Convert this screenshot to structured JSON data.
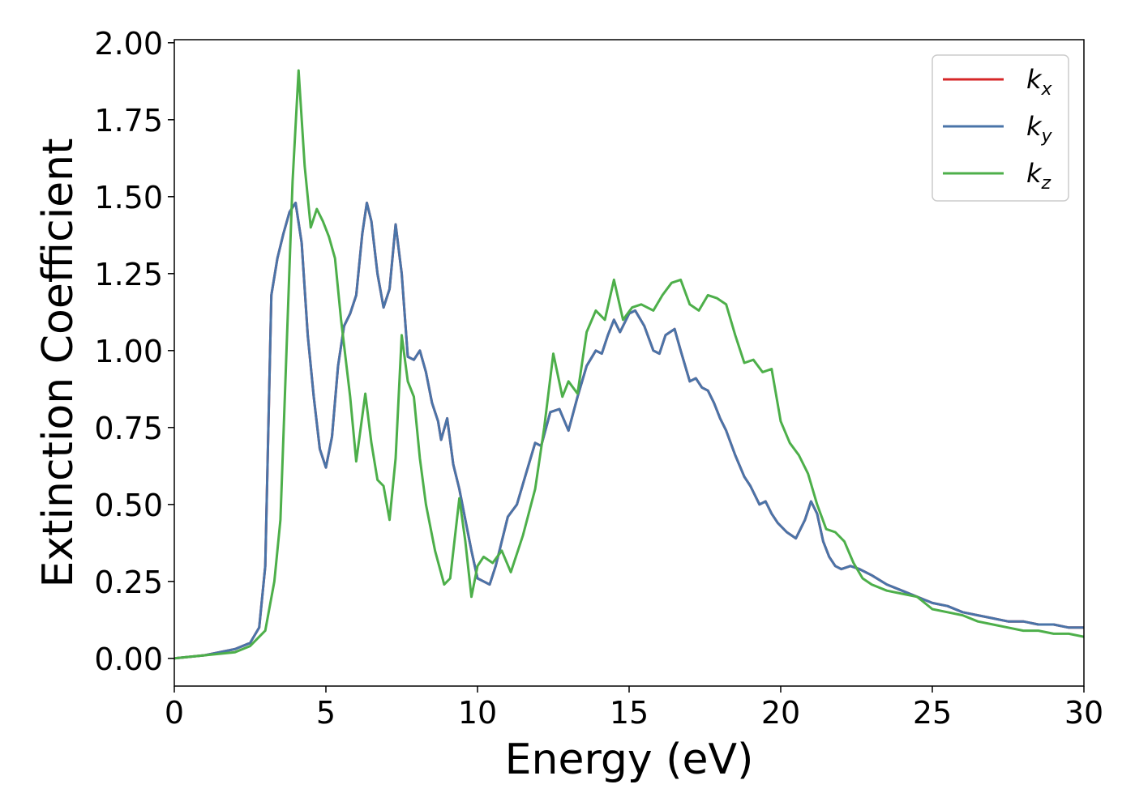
{
  "chart_data": {
    "type": "line",
    "title": "",
    "xlabel": "Energy (eV)",
    "ylabel": "Extinction Coefficient",
    "xlim": [
      0,
      30
    ],
    "ylim": [
      -0.09,
      2.01
    ],
    "xticks": [
      0,
      5,
      10,
      15,
      20,
      25,
      30
    ],
    "xtick_labels": [
      "0",
      "5",
      "10",
      "15",
      "20",
      "25",
      "30"
    ],
    "yticks": [
      0,
      0.25,
      0.5,
      0.75,
      1.0,
      1.25,
      1.5,
      1.75,
      2.0
    ],
    "ytick_labels": [
      "0.00",
      "0.25",
      "0.50",
      "0.75",
      "1.00",
      "1.25",
      "1.50",
      "1.75",
      "2.00"
    ],
    "grid": false,
    "legend_position": "top-right",
    "series": [
      {
        "name": "k_x",
        "label_main": "k",
        "label_sub": "x",
        "color": "#d62728",
        "x": [
          0,
          1,
          2,
          2.5,
          2.8,
          3.0,
          3.2,
          3.4,
          3.6,
          3.8,
          4.0,
          4.2,
          4.4,
          4.6,
          4.8,
          5.0,
          5.2,
          5.4,
          5.6,
          5.8,
          6.0,
          6.2,
          6.35,
          6.5,
          6.7,
          6.9,
          7.1,
          7.3,
          7.5,
          7.7,
          7.9,
          8.1,
          8.3,
          8.5,
          8.7,
          8.8,
          9.0,
          9.2,
          9.4,
          9.6,
          9.8,
          10.0,
          10.2,
          10.4,
          10.6,
          10.8,
          11.0,
          11.3,
          11.6,
          11.9,
          12.1,
          12.4,
          12.7,
          13.0,
          13.3,
          13.6,
          13.9,
          14.1,
          14.3,
          14.5,
          14.7,
          15.0,
          15.2,
          15.5,
          15.8,
          16.0,
          16.2,
          16.5,
          16.7,
          17.0,
          17.2,
          17.4,
          17.6,
          17.8,
          18.0,
          18.2,
          18.5,
          18.8,
          19.0,
          19.3,
          19.5,
          19.7,
          19.9,
          20.2,
          20.5,
          20.8,
          21.0,
          21.2,
          21.4,
          21.6,
          21.8,
          22.0,
          22.3,
          22.6,
          23.0,
          23.5,
          24.0,
          24.5,
          25,
          25.5,
          26,
          26.5,
          27,
          27.5,
          28,
          28.5,
          29,
          29.5,
          30
        ],
        "y": [
          0.0,
          0.01,
          0.03,
          0.05,
          0.1,
          0.3,
          1.18,
          1.3,
          1.38,
          1.45,
          1.48,
          1.35,
          1.05,
          0.85,
          0.68,
          0.62,
          0.72,
          0.95,
          1.08,
          1.12,
          1.18,
          1.38,
          1.48,
          1.42,
          1.25,
          1.14,
          1.2,
          1.41,
          1.25,
          0.98,
          0.97,
          1.0,
          0.93,
          0.83,
          0.77,
          0.71,
          0.78,
          0.63,
          0.55,
          0.45,
          0.35,
          0.26,
          0.25,
          0.24,
          0.3,
          0.38,
          0.46,
          0.5,
          0.6,
          0.7,
          0.69,
          0.8,
          0.81,
          0.74,
          0.85,
          0.95,
          1.0,
          0.99,
          1.05,
          1.1,
          1.06,
          1.12,
          1.13,
          1.08,
          1.0,
          0.99,
          1.05,
          1.07,
          1.0,
          0.9,
          0.91,
          0.88,
          0.87,
          0.83,
          0.78,
          0.74,
          0.66,
          0.59,
          0.56,
          0.5,
          0.51,
          0.47,
          0.44,
          0.41,
          0.39,
          0.45,
          0.51,
          0.47,
          0.38,
          0.33,
          0.3,
          0.29,
          0.3,
          0.29,
          0.27,
          0.24,
          0.22,
          0.2,
          0.18,
          0.17,
          0.15,
          0.14,
          0.13,
          0.12,
          0.12,
          0.11,
          0.11,
          0.1,
          0.1
        ]
      },
      {
        "name": "k_y",
        "label_main": "k",
        "label_sub": "y",
        "color": "#4a74a8",
        "x": [
          0,
          1,
          2,
          2.5,
          2.8,
          3.0,
          3.2,
          3.4,
          3.6,
          3.8,
          4.0,
          4.2,
          4.4,
          4.6,
          4.8,
          5.0,
          5.2,
          5.4,
          5.6,
          5.8,
          6.0,
          6.2,
          6.35,
          6.5,
          6.7,
          6.9,
          7.1,
          7.3,
          7.5,
          7.7,
          7.9,
          8.1,
          8.3,
          8.5,
          8.7,
          8.8,
          9.0,
          9.2,
          9.4,
          9.6,
          9.8,
          10.0,
          10.2,
          10.4,
          10.6,
          10.8,
          11.0,
          11.3,
          11.6,
          11.9,
          12.1,
          12.4,
          12.7,
          13.0,
          13.3,
          13.6,
          13.9,
          14.1,
          14.3,
          14.5,
          14.7,
          15.0,
          15.2,
          15.5,
          15.8,
          16.0,
          16.2,
          16.5,
          16.7,
          17.0,
          17.2,
          17.4,
          17.6,
          17.8,
          18.0,
          18.2,
          18.5,
          18.8,
          19.0,
          19.3,
          19.5,
          19.7,
          19.9,
          20.2,
          20.5,
          20.8,
          21.0,
          21.2,
          21.4,
          21.6,
          21.8,
          22.0,
          22.3,
          22.6,
          23.0,
          23.5,
          24.0,
          24.5,
          25,
          25.5,
          26,
          26.5,
          27,
          27.5,
          28,
          28.5,
          29,
          29.5,
          30
        ],
        "y": [
          0.0,
          0.01,
          0.03,
          0.05,
          0.1,
          0.3,
          1.18,
          1.3,
          1.38,
          1.45,
          1.48,
          1.35,
          1.05,
          0.85,
          0.68,
          0.62,
          0.72,
          0.95,
          1.08,
          1.12,
          1.18,
          1.38,
          1.48,
          1.42,
          1.25,
          1.14,
          1.2,
          1.41,
          1.25,
          0.98,
          0.97,
          1.0,
          0.93,
          0.83,
          0.77,
          0.71,
          0.78,
          0.63,
          0.55,
          0.45,
          0.35,
          0.26,
          0.25,
          0.24,
          0.3,
          0.38,
          0.46,
          0.5,
          0.6,
          0.7,
          0.69,
          0.8,
          0.81,
          0.74,
          0.85,
          0.95,
          1.0,
          0.99,
          1.05,
          1.1,
          1.06,
          1.12,
          1.13,
          1.08,
          1.0,
          0.99,
          1.05,
          1.07,
          1.0,
          0.9,
          0.91,
          0.88,
          0.87,
          0.83,
          0.78,
          0.74,
          0.66,
          0.59,
          0.56,
          0.5,
          0.51,
          0.47,
          0.44,
          0.41,
          0.39,
          0.45,
          0.51,
          0.47,
          0.38,
          0.33,
          0.3,
          0.29,
          0.3,
          0.29,
          0.27,
          0.24,
          0.22,
          0.2,
          0.18,
          0.17,
          0.15,
          0.14,
          0.13,
          0.12,
          0.12,
          0.11,
          0.11,
          0.1,
          0.1
        ]
      },
      {
        "name": "k_z",
        "label_main": "k",
        "label_sub": "z",
        "color": "#4daf4a",
        "x": [
          0,
          1,
          2,
          2.5,
          3.0,
          3.3,
          3.5,
          3.7,
          3.9,
          4.1,
          4.3,
          4.5,
          4.7,
          4.9,
          5.1,
          5.3,
          5.5,
          5.8,
          6.0,
          6.3,
          6.5,
          6.7,
          6.9,
          7.1,
          7.3,
          7.5,
          7.7,
          7.9,
          8.1,
          8.3,
          8.6,
          8.9,
          9.1,
          9.4,
          9.6,
          9.8,
          10.0,
          10.2,
          10.5,
          10.8,
          11.1,
          11.5,
          11.9,
          12.2,
          12.5,
          12.8,
          13.0,
          13.3,
          13.6,
          13.9,
          14.2,
          14.5,
          14.8,
          15.1,
          15.4,
          15.8,
          16.1,
          16.4,
          16.7,
          17.0,
          17.3,
          17.6,
          17.9,
          18.2,
          18.5,
          18.8,
          19.1,
          19.4,
          19.7,
          20.0,
          20.3,
          20.6,
          20.9,
          21.2,
          21.5,
          21.8,
          22.1,
          22.4,
          22.7,
          23.0,
          23.5,
          24.0,
          24.5,
          25,
          25.5,
          26,
          26.5,
          27,
          27.5,
          28,
          28.5,
          29,
          29.5,
          30
        ],
        "y": [
          0.0,
          0.01,
          0.02,
          0.04,
          0.09,
          0.25,
          0.45,
          1.0,
          1.55,
          1.91,
          1.6,
          1.4,
          1.46,
          1.42,
          1.37,
          1.3,
          1.1,
          0.85,
          0.64,
          0.86,
          0.7,
          0.58,
          0.56,
          0.45,
          0.65,
          1.05,
          0.9,
          0.85,
          0.65,
          0.5,
          0.35,
          0.24,
          0.26,
          0.52,
          0.38,
          0.2,
          0.3,
          0.33,
          0.31,
          0.35,
          0.28,
          0.4,
          0.55,
          0.75,
          0.99,
          0.85,
          0.9,
          0.86,
          1.06,
          1.13,
          1.1,
          1.23,
          1.1,
          1.14,
          1.15,
          1.13,
          1.18,
          1.22,
          1.23,
          1.15,
          1.13,
          1.18,
          1.17,
          1.15,
          1.05,
          0.96,
          0.97,
          0.93,
          0.94,
          0.77,
          0.7,
          0.66,
          0.6,
          0.5,
          0.42,
          0.41,
          0.38,
          0.31,
          0.26,
          0.24,
          0.22,
          0.21,
          0.2,
          0.16,
          0.15,
          0.14,
          0.12,
          0.11,
          0.1,
          0.09,
          0.09,
          0.08,
          0.08,
          0.07
        ]
      }
    ]
  }
}
